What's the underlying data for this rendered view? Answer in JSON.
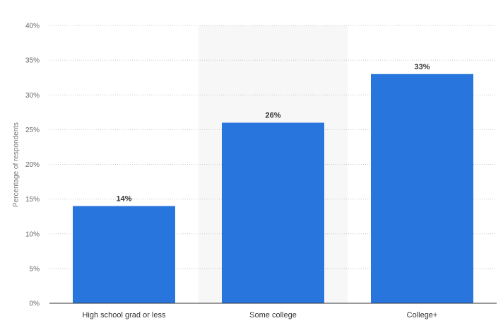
{
  "chart_data": {
    "type": "bar",
    "title": "",
    "xlabel": "",
    "ylabel": "Percentage of respondents",
    "categories": [
      "High school grad or less",
      "Some college",
      "College+"
    ],
    "values": [
      14,
      26,
      33
    ],
    "value_labels": [
      "14%",
      "26%",
      "33%"
    ],
    "ylim": [
      0,
      40
    ],
    "yticks": [
      0,
      5,
      10,
      15,
      20,
      25,
      30,
      35,
      40
    ],
    "ytick_labels": [
      "0%",
      "5%",
      "10%",
      "15%",
      "20%",
      "25%",
      "30%",
      "35%",
      "40%"
    ],
    "grid": true,
    "highlighted_category": "Some college",
    "bar_color": "#2876dd",
    "highlight_band_color": "#f7f7f7"
  }
}
